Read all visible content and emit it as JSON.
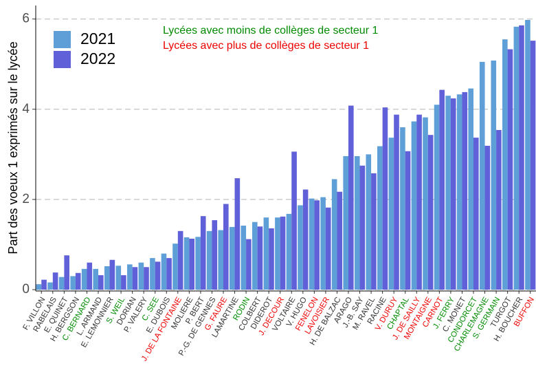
{
  "chart_data": {
    "type": "bar",
    "y_label": "Part des voeux 1 exprimés sur le lycée",
    "categories": [
      "F. VILLON",
      "RABELAIS",
      "E. QUINET",
      "H. BERGSON",
      "C. BERNARD",
      "L. ARMAND",
      "E. LEMONNIER",
      "S. WEIL",
      "DORIAN",
      "P. VALERY",
      "C. SEE",
      "E. DUBOIS",
      "J. DE LA FONTAINE",
      "MOLIERE",
      "P. BERT",
      "P.-G. DE GENNES",
      "G. FAURE",
      "LAMARTINE",
      "RODIN",
      "COLBERT",
      "DIDEROT",
      "J. DECOUR",
      "VOLTAIRE",
      "V. HUGO",
      "FENELON",
      "LAVOISIER",
      "H. DE BALZAC",
      "ARAGO",
      "J.-B. SAY",
      "M. RAVEL",
      "RACINE",
      "V. DURUY",
      "CHAPTAL",
      "J. DE SAILLY",
      "MONTAIGNE",
      "CARNOT",
      "J. FERRY",
      "C. MONET",
      "CONDORCET",
      "CHARLEMAGNE",
      "S. GERMAIN",
      "TURGOT",
      "H. BOUCHER",
      "BUFFON"
    ],
    "category_colors": [
      "#333333",
      "#333333",
      "#333333",
      "#333333",
      "#008b00",
      "#333333",
      "#333333",
      "#008b00",
      "#333333",
      "#333333",
      "#008b00",
      "#333333",
      "#ee0000",
      "#333333",
      "#333333",
      "#333333",
      "#ee0000",
      "#333333",
      "#008b00",
      "#333333",
      "#333333",
      "#ee0000",
      "#333333",
      "#333333",
      "#ee0000",
      "#ee0000",
      "#333333",
      "#333333",
      "#333333",
      "#333333",
      "#333333",
      "#ee0000",
      "#008b00",
      "#ee0000",
      "#ee0000",
      "#ee0000",
      "#008b00",
      "#333333",
      "#008b00",
      "#008b00",
      "#008b00",
      "#333333",
      "#333333",
      "#ee0000"
    ],
    "series": [
      {
        "name": "2021",
        "color": "#5f9fd8",
        "values": [
          0.12,
          0.16,
          0.28,
          0.3,
          0.46,
          0.46,
          0.52,
          0.53,
          0.56,
          0.6,
          0.7,
          0.8,
          1.02,
          1.16,
          1.17,
          1.3,
          1.32,
          1.39,
          1.42,
          1.5,
          1.6,
          1.6,
          1.68,
          1.87,
          2.02,
          2.05,
          2.45,
          2.96,
          2.96,
          3.0,
          3.18,
          3.37,
          3.6,
          3.73,
          3.82,
          4.1,
          4.3,
          4.33,
          4.46,
          5.05,
          5.08,
          5.55,
          5.83,
          5.98
        ]
      },
      {
        "name": "2022",
        "color": "#6060d8",
        "values": [
          0.22,
          0.38,
          0.76,
          0.37,
          0.6,
          0.32,
          0.66,
          0.32,
          0.5,
          0.5,
          0.62,
          0.7,
          1.3,
          1.13,
          1.63,
          1.54,
          1.9,
          2.47,
          1.12,
          1.4,
          1.36,
          1.62,
          3.06,
          2.22,
          1.98,
          1.82,
          2.17,
          4.08,
          2.75,
          2.58,
          4.04,
          3.88,
          3.07,
          3.88,
          3.43,
          4.43,
          4.24,
          4.38,
          3.37,
          3.19,
          3.54,
          5.33,
          5.86,
          5.52
        ]
      }
    ],
    "annotations": [
      {
        "text": "Lycées avec moins de collèges de secteur 1",
        "color": "#008b00"
      },
      {
        "text": "Lycées avec plus de collèges de secteur 1",
        "color": "#ee0000"
      }
    ],
    "ylim": [
      -0.03,
      6.3
    ],
    "yticks": [
      0,
      2,
      4,
      6
    ],
    "grid": true,
    "legend": "upper left"
  }
}
